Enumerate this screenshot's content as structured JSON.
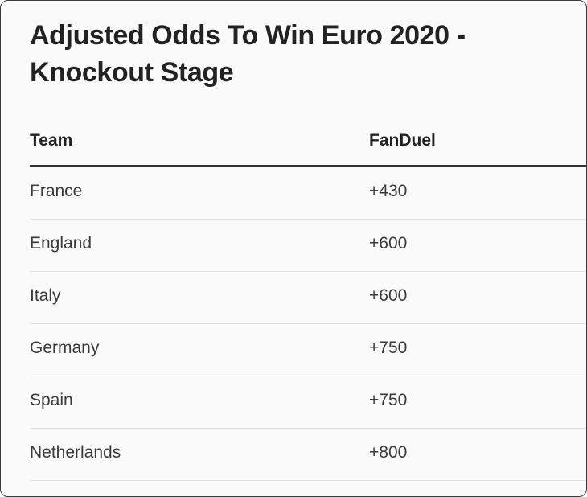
{
  "title": "Adjusted Odds To Win Euro 2020 - Knockout Stage",
  "table": {
    "headers": {
      "team": "Team",
      "sportsbook": "FanDuel"
    },
    "rows": [
      {
        "team": "France",
        "odds": "+430"
      },
      {
        "team": "England",
        "odds": "+600"
      },
      {
        "team": "Italy",
        "odds": "+600"
      },
      {
        "team": "Germany",
        "odds": "+750"
      },
      {
        "team": "Spain",
        "odds": "+750"
      },
      {
        "team": "Netherlands",
        "odds": "+800"
      }
    ]
  }
}
